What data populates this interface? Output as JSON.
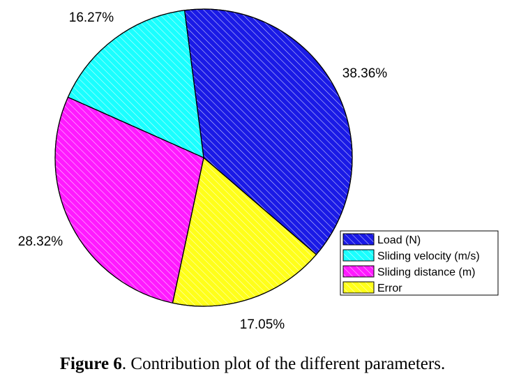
{
  "caption": {
    "label": "Figure 6",
    "text": ". Contribution plot of the different parameters."
  },
  "chart_data": {
    "type": "pie",
    "title": "",
    "hatched": true,
    "start_angle_deg": -7.4,
    "direction": "clockwise",
    "legend_position": "bottom-right",
    "slices": [
      {
        "name": "Load (N)",
        "value": 38.36,
        "label": "38.36%",
        "color": "#1a1ae6"
      },
      {
        "name": "Error",
        "value": 17.05,
        "label": "17.05%",
        "color": "#ffff1a"
      },
      {
        "name": "Sliding distance (m)",
        "value": 28.32,
        "label": "28.32%",
        "color": "#ff1aff"
      },
      {
        "name": "Sliding velocity (m/s)",
        "value": 16.27,
        "label": "16.27%",
        "color": "#1affff"
      }
    ],
    "legend_order": [
      "Load (N)",
      "Sliding velocity (m/s)",
      "Sliding distance (m)",
      "Error"
    ]
  }
}
